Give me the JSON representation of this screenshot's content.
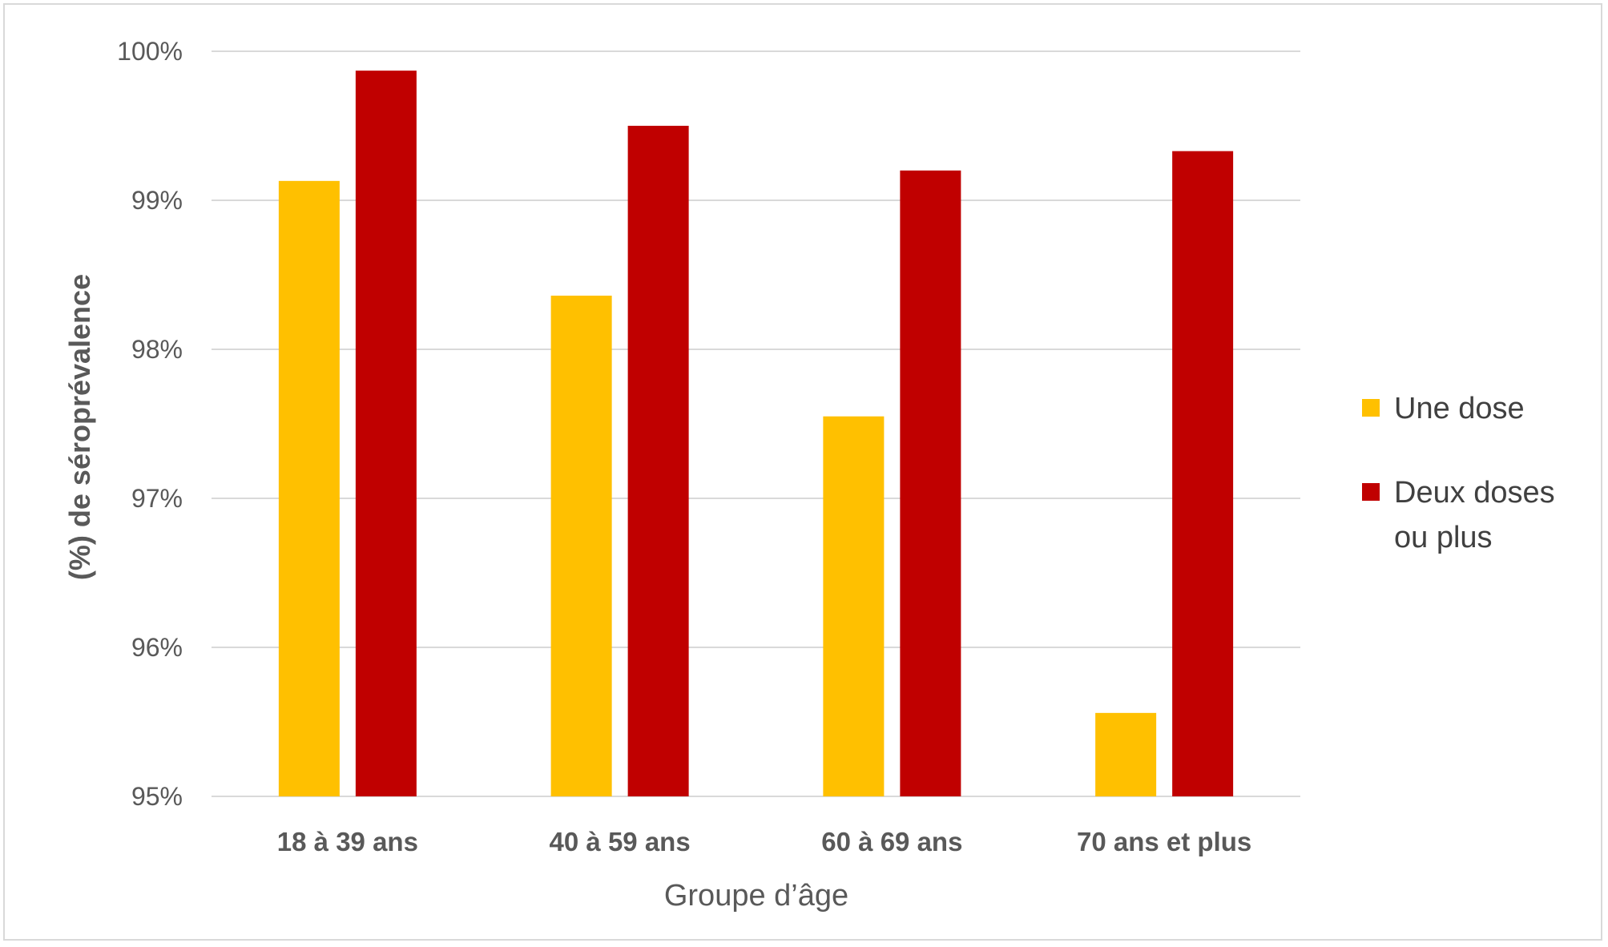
{
  "chart_data": {
    "type": "bar",
    "categories": [
      "18 à 39 ans",
      "40 à 59 ans",
      "60 à 69 ans",
      "70 ans et plus"
    ],
    "series": [
      {
        "name": "Une dose",
        "values": [
          99.13,
          98.36,
          97.55,
          95.56
        ],
        "color": "#FFC000"
      },
      {
        "name": "Deux doses ou plus",
        "values": [
          99.87,
          99.5,
          99.2,
          99.33
        ],
        "color": "#C00000"
      }
    ],
    "title": "",
    "xlabel": "Groupe d’âge",
    "ylabel": "(%) de séroprévalence",
    "ylim": [
      95,
      100
    ],
    "yticks": [
      "95%",
      "96%",
      "97%",
      "98%",
      "99%",
      "100%"
    ],
    "ytick_values": [
      95,
      96,
      97,
      98,
      99,
      100
    ],
    "grid": true,
    "legend": {
      "position": "right",
      "entries": [
        {
          "label_lines": [
            "Une dose"
          ],
          "color": "#FFC000"
        },
        {
          "label_lines": [
            "Deux doses",
            "ou plus"
          ],
          "color": "#C00000"
        }
      ]
    }
  }
}
